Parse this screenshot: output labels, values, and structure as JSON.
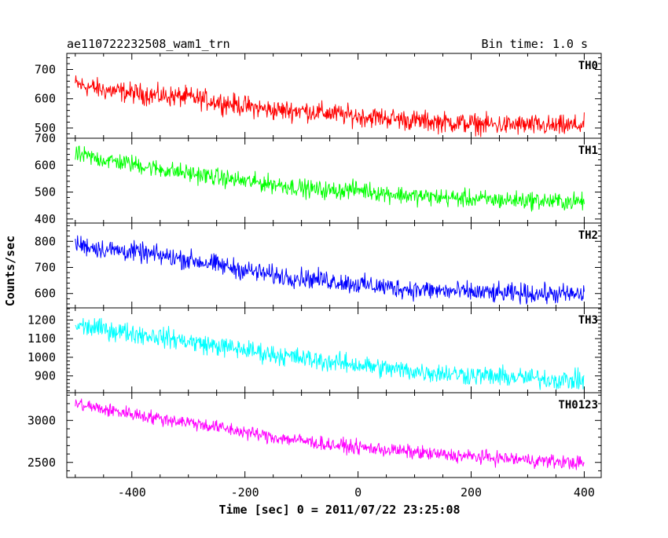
{
  "header": {
    "title": "ae110722232508_wam1_trn",
    "bin_time": "Bin time: 1.0 s"
  },
  "axes": {
    "ylabel": "Counts/sec",
    "xlabel": "Time [sec] 0 = 2011/07/22 23:25:08"
  },
  "chart_data": [
    {
      "type": "line",
      "name": "TH0",
      "color": "#ff0000",
      "xlim": [
        -515,
        430
      ],
      "ylim": [
        465,
        755
      ],
      "yticks": [
        500,
        600,
        700
      ],
      "ytick_labels": [
        "500",
        "600",
        "700"
      ],
      "x": [
        -500,
        -450,
        -400,
        -350,
        -300,
        -250,
        -200,
        -150,
        -100,
        -50,
        0,
        50,
        100,
        150,
        200,
        250,
        300,
        350,
        400
      ],
      "values": [
        650,
        630,
        620,
        610,
        605,
        590,
        575,
        560,
        560,
        550,
        540,
        535,
        525,
        520,
        515,
        510,
        510,
        505,
        510
      ],
      "noise": 30
    },
    {
      "type": "line",
      "name": "TH1",
      "color": "#00ff00",
      "xlim": [
        -515,
        430
      ],
      "ylim": [
        385,
        700
      ],
      "yticks": [
        400,
        500,
        600,
        700
      ],
      "ytick_labels": [
        "400",
        "500",
        "600",
        "700"
      ],
      "x": [
        -500,
        -450,
        -400,
        -350,
        -300,
        -250,
        -200,
        -150,
        -100,
        -50,
        0,
        50,
        100,
        150,
        200,
        250,
        300,
        350,
        400
      ],
      "values": [
        640,
        620,
        605,
        585,
        570,
        555,
        540,
        530,
        515,
        505,
        510,
        495,
        485,
        480,
        475,
        470,
        470,
        465,
        465
      ],
      "noise": 28
    },
    {
      "type": "line",
      "name": "TH2",
      "color": "#0000ff",
      "xlim": [
        -515,
        430
      ],
      "ylim": [
        545,
        870
      ],
      "yticks": [
        600,
        700,
        800
      ],
      "ytick_labels": [
        "600",
        "700",
        "800"
      ],
      "x": [
        -500,
        -450,
        -400,
        -350,
        -300,
        -250,
        -200,
        -150,
        -100,
        -50,
        0,
        50,
        100,
        150,
        200,
        250,
        300,
        350,
        400
      ],
      "values": [
        790,
        770,
        760,
        745,
        730,
        710,
        690,
        670,
        660,
        650,
        635,
        625,
        615,
        610,
        605,
        600,
        600,
        598,
        595
      ],
      "noise": 32
    },
    {
      "type": "line",
      "name": "TH3",
      "color": "#00ffff",
      "xlim": [
        -515,
        430
      ],
      "ylim": [
        810,
        1265
      ],
      "yticks": [
        900,
        1000,
        1100,
        1200
      ],
      "ytick_labels": [
        "900",
        "1000",
        "1100",
        "1200"
      ],
      "x": [
        -500,
        -450,
        -400,
        -350,
        -300,
        -250,
        -200,
        -150,
        -100,
        -50,
        0,
        50,
        100,
        150,
        200,
        250,
        300,
        350,
        400
      ],
      "values": [
        1170,
        1150,
        1130,
        1110,
        1085,
        1060,
        1040,
        1015,
        995,
        975,
        960,
        940,
        925,
        915,
        905,
        895,
        890,
        880,
        875
      ],
      "noise": 45
    },
    {
      "type": "line",
      "name": "TH0123",
      "color": "#ff00ff",
      "xlim": [
        -515,
        430
      ],
      "ylim": [
        2320,
        3330
      ],
      "yticks": [
        2500,
        3000
      ],
      "ytick_labels": [
        "2500",
        "3000"
      ],
      "x": [
        -500,
        -450,
        -400,
        -350,
        -300,
        -250,
        -200,
        -150,
        -100,
        -50,
        0,
        50,
        100,
        150,
        200,
        250,
        300,
        350,
        400
      ],
      "values": [
        3200,
        3130,
        3080,
        3020,
        2980,
        2920,
        2860,
        2800,
        2760,
        2710,
        2680,
        2650,
        2620,
        2590,
        2570,
        2550,
        2530,
        2510,
        2490
      ],
      "noise": 70
    }
  ],
  "xaxis": {
    "ticks": [
      -400,
      -200,
      0,
      200,
      400
    ],
    "tick_labels": [
      "-400",
      "-200",
      "0",
      "200",
      "400"
    ]
  }
}
